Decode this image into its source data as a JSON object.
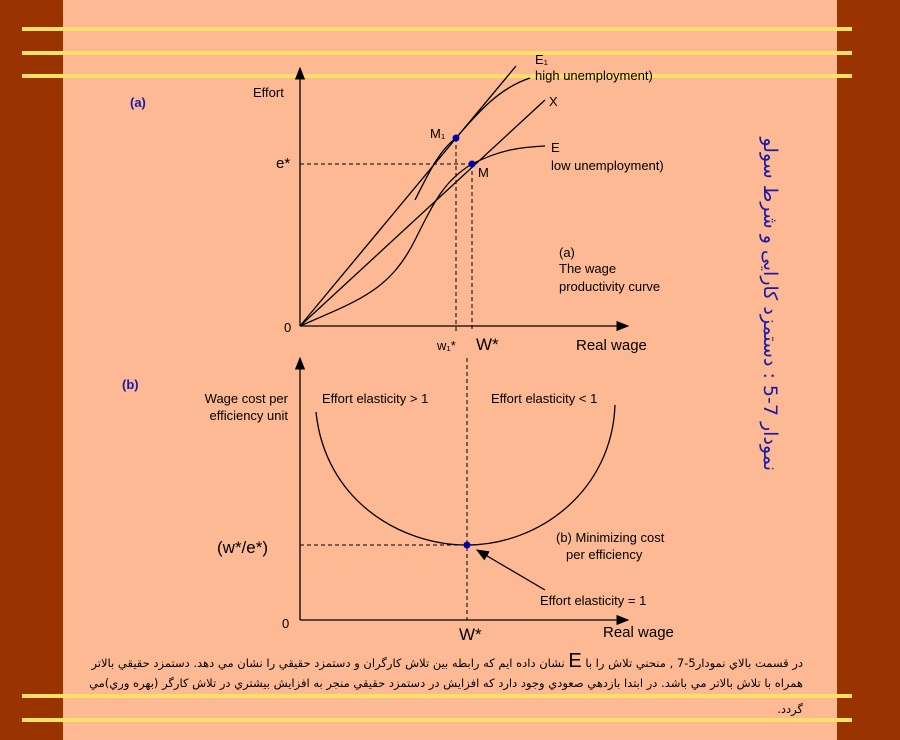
{
  "colors": {
    "background": "#FDB994",
    "border": "#993300",
    "rule": "#FFE066",
    "label_blue": "#1a1aa6",
    "point": "#0000AA"
  },
  "side_title": "نمودار 7-5 : دستمزد کارایی و شرط سولو",
  "panel_a": {
    "tag": "(a)",
    "y_label": "Effort",
    "x_label": "Real wage",
    "origin": "0",
    "e_star": "e*",
    "w1_star": "w₁*",
    "w_star": "W*",
    "E1_label": "E₁",
    "E1_note": "high unemployment)",
    "X_label": "X",
    "E_label": "E",
    "E_note": "low  unemployment)",
    "M1_label": "M₁",
    "M_label": "M",
    "caption": [
      "(a)",
      "The wage",
      "productivity curve"
    ]
  },
  "panel_b": {
    "tag": "(b)",
    "y_label": [
      "Wage cost per",
      "efficiency unit"
    ],
    "x_label": "Real wage",
    "origin": "0",
    "w_star": "W*",
    "min_label": "(w*/e*)",
    "left_region": "Effort elasticity > 1",
    "right_region": "Effort elasticity  < 1",
    "caption": [
      "(b) Minimizing  cost",
      "per efficiency"
    ],
    "arrow_note": "Effort elasticity  = 1"
  },
  "paragraph": {
    "line1_before": "در قسمت بالاي نمودار5-7 , منحني تلاش را با",
    "line1_E": "E",
    "line1_after": "نشان داده ايم كه رابطه بين تلاش كارگران و دستمزد حقيقي را نشان مي دهد. دستمزد حقيقي بالاتر",
    "line2": "همراه با تلاش بالاتر مي باشد. در ابتدا بازدهي صعودي وجود دارد كه افزايش در دستمزد حقيقي منجر به افزايش بيشتري در تلاش كارگر (بهره وري)مي",
    "line3": "گردد."
  }
}
